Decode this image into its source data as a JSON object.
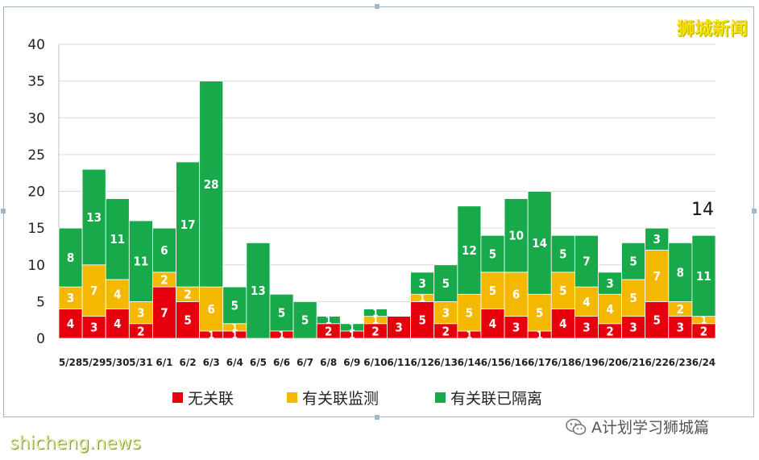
{
  "brand": "狮城新闻",
  "callout": "14",
  "watermark": "shicheng.news",
  "wechat_caption": "A计划学习狮城篇",
  "colors": {
    "unlinked": "#e6000e",
    "monitored": "#f5b800",
    "quarantined": "#18a94b",
    "grid": "#d9d9d9",
    "axis": "#bfbfbf"
  },
  "legend": [
    {
      "label": "无关联",
      "color_key": "unlinked"
    },
    {
      "label": "有关联监测",
      "color_key": "monitored"
    },
    {
      "label": "有关联已隔离",
      "color_key": "quarantined"
    }
  ],
  "chart_data": {
    "type": "bar",
    "stacked": true,
    "title": "",
    "xlabel": "",
    "ylabel": "",
    "ylim": [
      0,
      40
    ],
    "yticks": [
      0,
      5,
      10,
      15,
      20,
      25,
      30,
      35,
      40
    ],
    "grid": true,
    "legend_position": "bottom",
    "categories": [
      "5/28",
      "5/29",
      "5/30",
      "5/31",
      "6/1",
      "6/2",
      "6/3",
      "6/4",
      "6/5",
      "6/6",
      "6/7",
      "6/8",
      "6/9",
      "6/10",
      "6/11",
      "6/12",
      "6/13",
      "6/14",
      "6/15",
      "6/16",
      "6/17",
      "6/18",
      "6/19",
      "6/20",
      "6/21",
      "6/22",
      "6/23",
      "6/24"
    ],
    "series": [
      {
        "name": "无关联",
        "values": [
          4,
          3,
          4,
          2,
          7,
          5,
          1,
          1,
          0,
          1,
          0,
          2,
          1,
          2,
          3,
          5,
          2,
          1,
          4,
          3,
          1,
          4,
          3,
          2,
          3,
          5,
          3,
          2
        ]
      },
      {
        "name": "有关联监测",
        "values": [
          3,
          7,
          4,
          3,
          2,
          2,
          6,
          1,
          0,
          0,
          0,
          0,
          0,
          1,
          0,
          1,
          3,
          5,
          5,
          6,
          5,
          5,
          4,
          4,
          5,
          7,
          2,
          1
        ]
      },
      {
        "name": "有关联已隔离",
        "values": [
          8,
          13,
          11,
          11,
          6,
          17,
          28,
          5,
          13,
          5,
          5,
          1,
          1,
          1,
          0,
          3,
          5,
          12,
          5,
          10,
          14,
          5,
          7,
          3,
          5,
          3,
          8,
          11
        ]
      }
    ]
  }
}
